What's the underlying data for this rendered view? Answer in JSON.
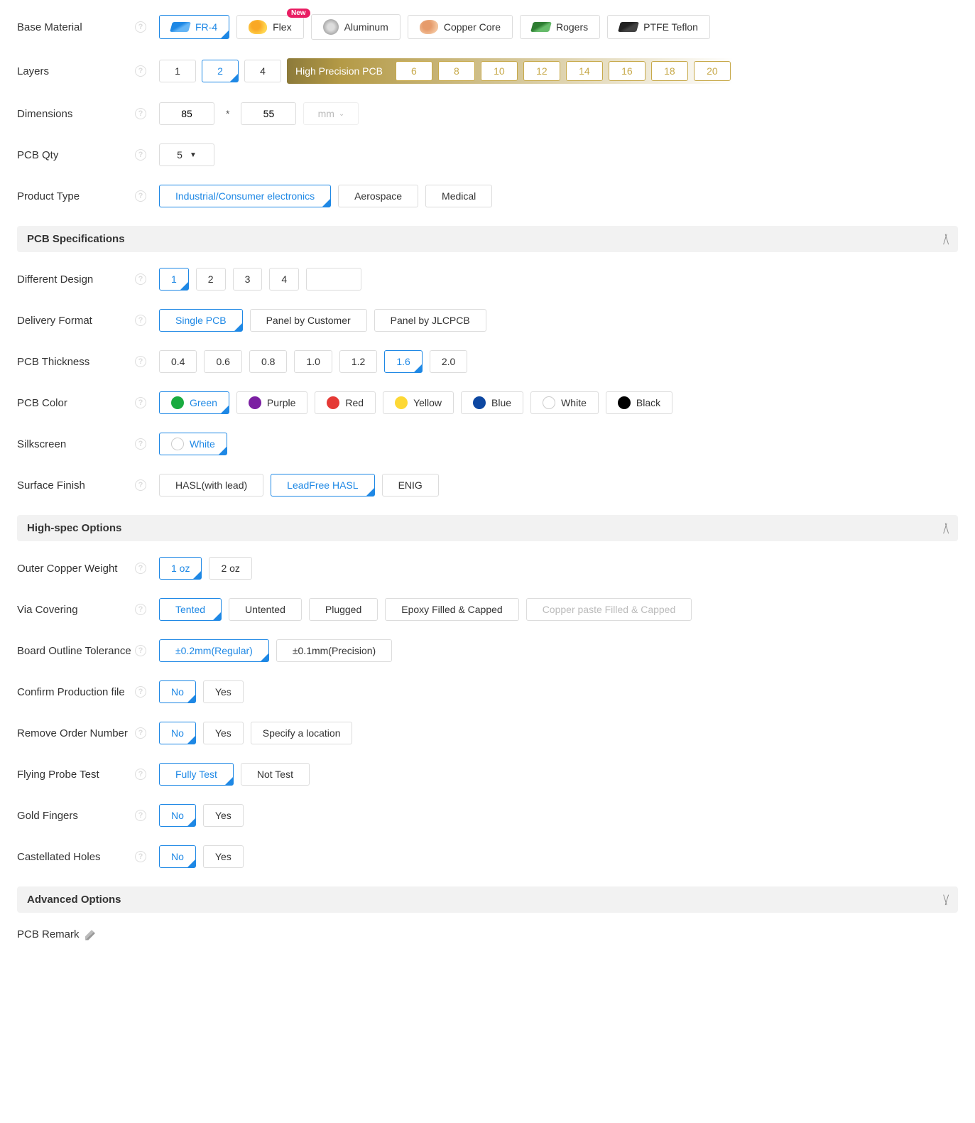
{
  "base_material": {
    "label": "Base Material",
    "new_badge": "New",
    "options": [
      "FR-4",
      "Flex",
      "Aluminum",
      "Copper Core",
      "Rogers",
      "PTFE Teflon"
    ],
    "selected": 0,
    "icons": [
      "fr4",
      "flex",
      "alu",
      "cu",
      "rog",
      "ptfe"
    ],
    "new_on": 1
  },
  "layers": {
    "label": "Layers",
    "basic": [
      "1",
      "2",
      "4"
    ],
    "selected": 1,
    "hp_label": "High Precision PCB",
    "hp": [
      "6",
      "8",
      "10",
      "12",
      "14",
      "16",
      "18",
      "20"
    ]
  },
  "dimensions": {
    "label": "Dimensions",
    "w": "85",
    "h": "55",
    "unit": "mm"
  },
  "pcb_qty": {
    "label": "PCB Qty",
    "value": "5"
  },
  "product_type": {
    "label": "Product Type",
    "options": [
      "Industrial/Consumer electronics",
      "Aerospace",
      "Medical"
    ],
    "selected": 0
  },
  "sections": {
    "spec": "PCB Specifications",
    "highspec": "High-spec Options",
    "advanced": "Advanced Options"
  },
  "diff_design": {
    "label": "Different Design",
    "options": [
      "1",
      "2",
      "3",
      "4",
      ""
    ],
    "selected": 0
  },
  "delivery_format": {
    "label": "Delivery Format",
    "options": [
      "Single PCB",
      "Panel by Customer",
      "Panel by JLCPCB"
    ],
    "selected": 0
  },
  "thickness": {
    "label": "PCB Thickness",
    "options": [
      "0.4",
      "0.6",
      "0.8",
      "1.0",
      "1.2",
      "1.6",
      "2.0"
    ],
    "selected": 5
  },
  "pcb_color": {
    "label": "PCB Color",
    "options": [
      "Green",
      "Purple",
      "Red",
      "Yellow",
      "Blue",
      "White",
      "Black"
    ],
    "hex": [
      "#1aab40",
      "#7b1fa2",
      "#e53935",
      "#fdd835",
      "#0d47a1",
      "#ffffff",
      "#000000"
    ],
    "selected": 0
  },
  "silkscreen": {
    "label": "Silkscreen",
    "options": [
      "White"
    ],
    "hex": [
      "#ffffff"
    ],
    "selected": 0
  },
  "surface_finish": {
    "label": "Surface Finish",
    "options": [
      "HASL(with lead)",
      "LeadFree HASL",
      "ENIG"
    ],
    "selected": 1
  },
  "outer_copper": {
    "label": "Outer Copper Weight",
    "options": [
      "1 oz",
      "2 oz"
    ],
    "selected": 0
  },
  "via_covering": {
    "label": "Via Covering",
    "options": [
      "Tented",
      "Untented",
      "Plugged",
      "Epoxy Filled & Capped",
      "Copper paste Filled & Capped"
    ],
    "selected": 0,
    "disabled": [
      4
    ]
  },
  "outline_tol": {
    "label": "Board Outline Tolerance",
    "options": [
      "±0.2mm(Regular)",
      "±0.1mm(Precision)"
    ],
    "selected": 0
  },
  "confirm_prod": {
    "label": "Confirm Production file",
    "options": [
      "No",
      "Yes"
    ],
    "selected": 0
  },
  "remove_order_no": {
    "label": "Remove Order Number",
    "options": [
      "No",
      "Yes",
      "Specify a location"
    ],
    "selected": 0
  },
  "flying_probe": {
    "label": "Flying Probe Test",
    "options": [
      "Fully Test",
      "Not Test"
    ],
    "selected": 0
  },
  "gold_fingers": {
    "label": "Gold Fingers",
    "options": [
      "No",
      "Yes"
    ],
    "selected": 0
  },
  "castellated": {
    "label": "Castellated Holes",
    "options": [
      "No",
      "Yes"
    ],
    "selected": 0
  },
  "remark": {
    "label": "PCB Remark"
  }
}
